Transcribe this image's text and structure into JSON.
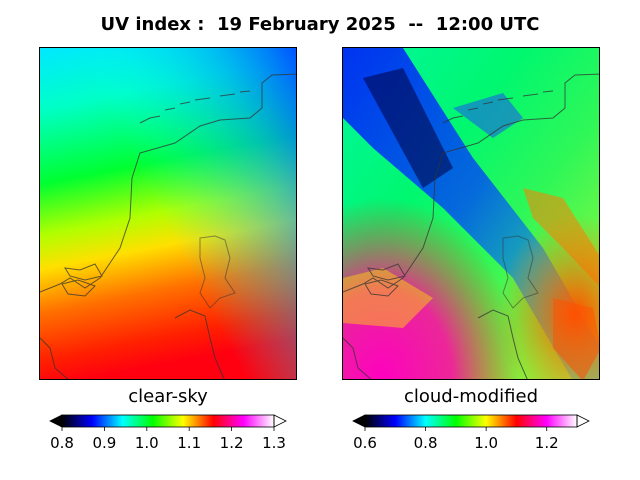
{
  "title": "UV index :  19 February 2025  --  12:00 UTC",
  "panels": [
    {
      "label": "clear-sky",
      "colorbar": {
        "min": 0.8,
        "max": 1.3,
        "ticks": [
          "0.8",
          "0.9",
          "1.0",
          "1.1",
          "1.2",
          "1.3"
        ],
        "extend": "both"
      }
    },
    {
      "label": "cloud-modified",
      "colorbar": {
        "min": 0.6,
        "max": 1.3,
        "ticks": [
          "0.6",
          "0.8",
          "1.0",
          "1.2"
        ],
        "extend": "both"
      }
    }
  ],
  "colormap": [
    "#000000",
    "#0000ff",
    "#00ffff",
    "#00ff00",
    "#ffff00",
    "#ff0000",
    "#ff00ff",
    "#ffffff"
  ]
}
